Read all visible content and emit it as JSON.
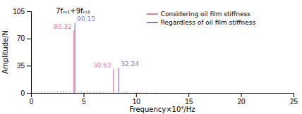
{
  "chart_data": {
    "type": "stem",
    "xlabel": "Frequency×10⁴/Hz",
    "ylabel": "Amplitude/N",
    "xlim": [
      0,
      25
    ],
    "ylim": [
      0,
      105
    ],
    "xticks": [
      0,
      5,
      10,
      15,
      20,
      25
    ],
    "yticks": [
      0,
      35,
      70,
      105
    ],
    "legend": "top",
    "series": [
      {
        "name": "Considering oil film stiffness",
        "color": "#E87CA0",
        "x": [
          0.4,
          0.7,
          1.0,
          1.3,
          1.6,
          1.9,
          2.2,
          2.5,
          2.8,
          3.1,
          3.4,
          3.7,
          4.5,
          4.8,
          5.1,
          5.4,
          5.7,
          6.0,
          6.3,
          6.6,
          6.9,
          7.2,
          7.5,
          8.6,
          8.9,
          9.2,
          9.5,
          9.8,
          10.1,
          10.4,
          10.7,
          11.0,
          11.5,
          12.0,
          4.08,
          7.85
        ],
        "values": [
          1.8,
          1.5,
          2.2,
          1.8,
          2.5,
          2.0,
          1.6,
          2.8,
          2.0,
          3.5,
          2.2,
          2.0,
          2.5,
          1.8,
          2.0,
          3.0,
          1.5,
          2.2,
          1.8,
          2.5,
          1.6,
          2.0,
          1.5,
          1.2,
          1.5,
          1.8,
          1.2,
          1.0,
          1.3,
          1.0,
          1.2,
          1.0,
          0.8,
          0.8,
          80.32,
          30.63
        ],
        "value_labels": [
          null,
          null,
          null,
          null,
          null,
          null,
          null,
          null,
          null,
          null,
          null,
          null,
          null,
          null,
          null,
          null,
          null,
          null,
          null,
          null,
          null,
          null,
          null,
          null,
          null,
          null,
          null,
          null,
          null,
          null,
          null,
          null,
          null,
          null,
          "80.32",
          "30.63"
        ]
      },
      {
        "name": "Regardless of oil film stiffness",
        "color": "#7B7BCF",
        "x": [
          4.18,
          8.35
        ],
        "values": [
          90.15,
          32.24
        ],
        "value_labels": [
          "90.15",
          "32.24"
        ]
      }
    ],
    "annotations": [
      {
        "x": 4.0,
        "y": 101,
        "text": "7fₘ₁+9fₘ₂"
      }
    ]
  }
}
